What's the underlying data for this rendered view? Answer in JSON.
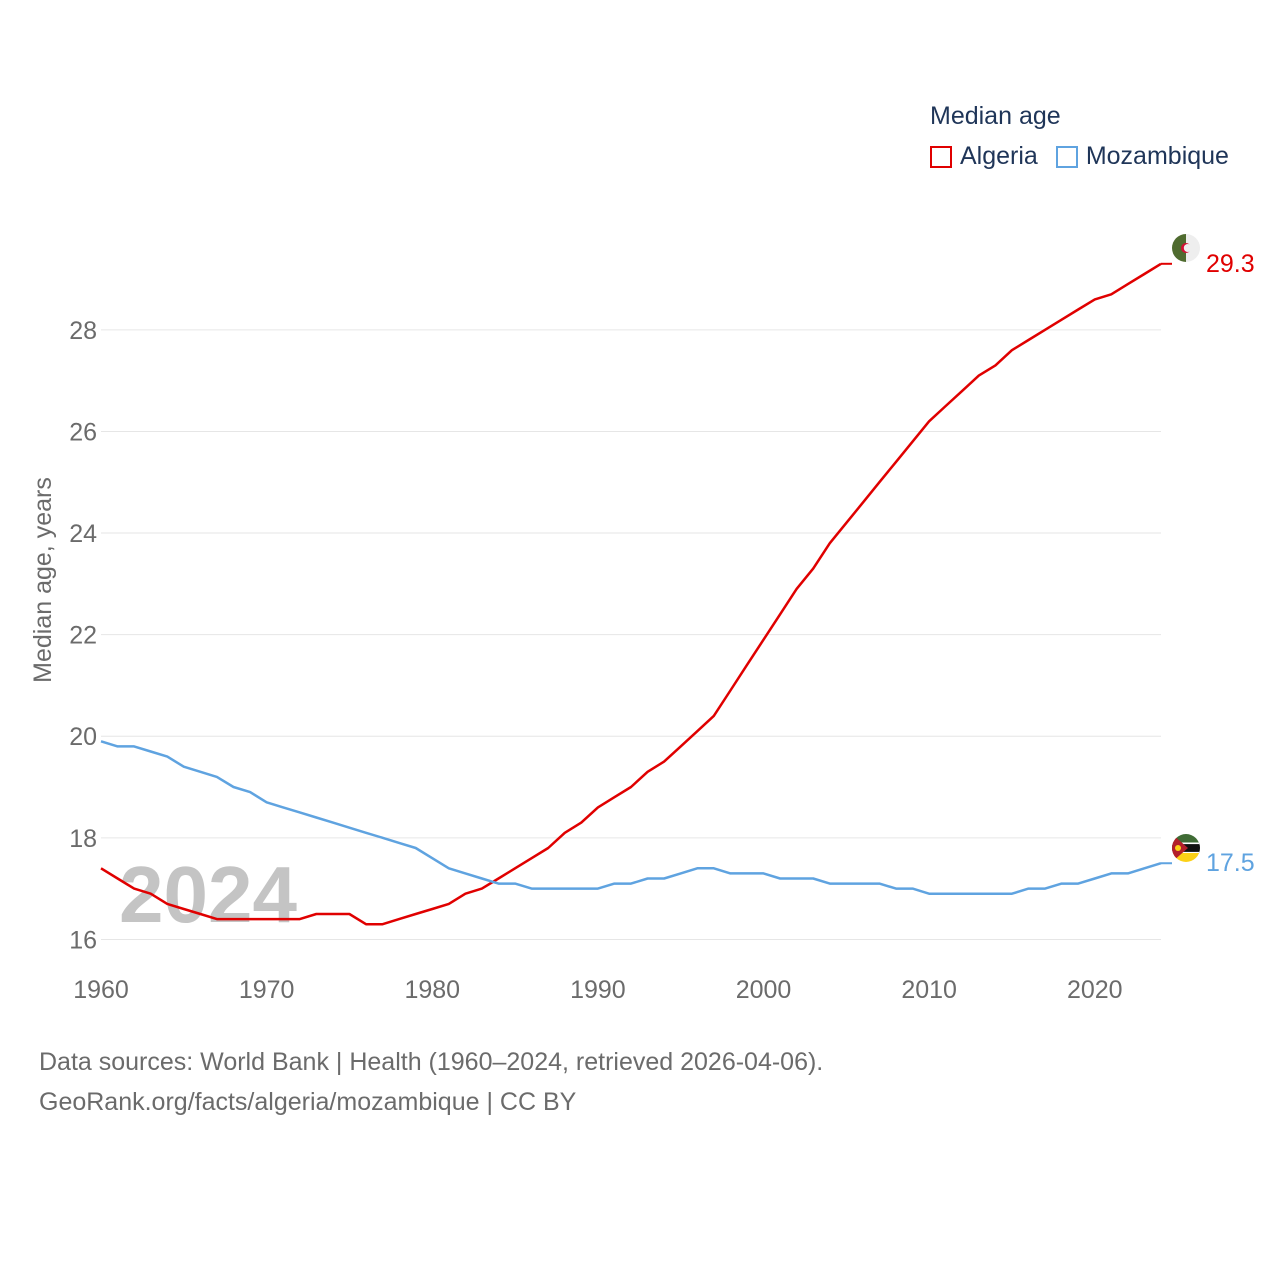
{
  "chart_data": {
    "type": "line",
    "legend_title": "Median age",
    "ylabel": "Median age, years",
    "xlabel": "",
    "x": [
      1960,
      1961,
      1962,
      1963,
      1964,
      1965,
      1966,
      1967,
      1968,
      1969,
      1970,
      1971,
      1972,
      1973,
      1974,
      1975,
      1976,
      1977,
      1978,
      1979,
      1980,
      1981,
      1982,
      1983,
      1984,
      1985,
      1986,
      1987,
      1988,
      1989,
      1990,
      1991,
      1992,
      1993,
      1994,
      1995,
      1996,
      1997,
      1998,
      1999,
      2000,
      2001,
      2002,
      2003,
      2004,
      2005,
      2006,
      2007,
      2008,
      2009,
      2010,
      2011,
      2012,
      2013,
      2014,
      2015,
      2016,
      2017,
      2018,
      2019,
      2020,
      2021,
      2022,
      2023,
      2024
    ],
    "series": [
      {
        "name": "Algeria",
        "color": "#e00000",
        "end_label": "29.3",
        "values": [
          17.4,
          17.2,
          17.0,
          16.9,
          16.7,
          16.6,
          16.5,
          16.4,
          16.4,
          16.4,
          16.4,
          16.4,
          16.4,
          16.5,
          16.5,
          16.5,
          16.3,
          16.3,
          16.4,
          16.5,
          16.6,
          16.7,
          16.9,
          17.0,
          17.2,
          17.4,
          17.6,
          17.8,
          18.1,
          18.3,
          18.6,
          18.8,
          19.0,
          19.3,
          19.5,
          19.8,
          20.1,
          20.4,
          20.9,
          21.4,
          21.9,
          22.4,
          22.9,
          23.3,
          23.8,
          24.2,
          24.6,
          25.0,
          25.4,
          25.8,
          26.2,
          26.5,
          26.8,
          27.1,
          27.3,
          27.6,
          27.8,
          28.0,
          28.2,
          28.4,
          28.6,
          28.7,
          28.9,
          29.1,
          29.3
        ]
      },
      {
        "name": "Mozambique",
        "color": "#5fa3e0",
        "end_label": "17.5",
        "values": [
          19.9,
          19.8,
          19.8,
          19.7,
          19.6,
          19.4,
          19.3,
          19.2,
          19.0,
          18.9,
          18.7,
          18.6,
          18.5,
          18.4,
          18.3,
          18.2,
          18.1,
          18.0,
          17.9,
          17.8,
          17.6,
          17.4,
          17.3,
          17.2,
          17.1,
          17.1,
          17.0,
          17.0,
          17.0,
          17.0,
          17.0,
          17.1,
          17.1,
          17.2,
          17.2,
          17.3,
          17.4,
          17.4,
          17.3,
          17.3,
          17.3,
          17.2,
          17.2,
          17.2,
          17.1,
          17.1,
          17.1,
          17.1,
          17.0,
          17.0,
          16.9,
          16.9,
          16.9,
          16.9,
          16.9,
          16.9,
          17.0,
          17.0,
          17.1,
          17.1,
          17.2,
          17.3,
          17.3,
          17.4,
          17.5
        ]
      }
    ],
    "x_ticks": [
      "1960",
      "1970",
      "1980",
      "1990",
      "2000",
      "2010",
      "2020"
    ],
    "y_ticks": [
      "16",
      "18",
      "20",
      "22",
      "24",
      "26",
      "28"
    ],
    "xlim": [
      1960,
      2024
    ],
    "ylim": [
      15.3,
      30.3
    ],
    "grid": true,
    "year_watermark": "2024",
    "legend_position": "top-right"
  },
  "source": {
    "line1": "Data sources: World Bank | Health (1960–2024, retrieved 2026-04-06).",
    "line2": "GeoRank.org/facts/algeria/mozambique | CC BY"
  },
  "flags": {
    "algeria": "algeria-flag-icon",
    "mozambique": "mozambique-flag-icon"
  }
}
